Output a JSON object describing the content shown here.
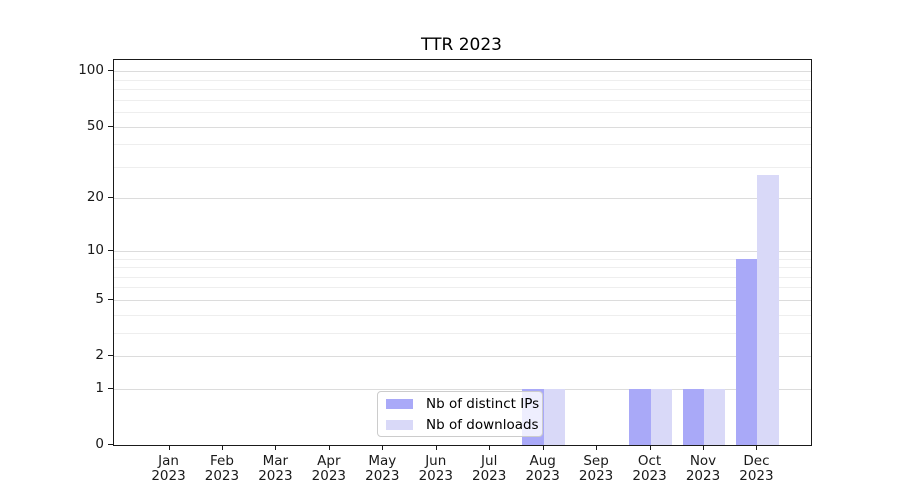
{
  "title": "TTR 2023",
  "chart_data": {
    "type": "bar",
    "categories": [
      "Jan",
      "Feb",
      "Mar",
      "Apr",
      "May",
      "Jun",
      "Jul",
      "Aug",
      "Sep",
      "Oct",
      "Nov",
      "Dec"
    ],
    "category_year": "2023",
    "series": [
      {
        "name": "Nb of distinct IPs",
        "color": "#a9a9f8",
        "values": [
          0,
          0,
          0,
          0,
          0,
          0,
          0,
          1,
          0,
          1,
          1,
          9
        ]
      },
      {
        "name": "Nb of downloads",
        "color": "#d9d9f8",
        "values": [
          0,
          0,
          0,
          0,
          0,
          0,
          0,
          1,
          0,
          1,
          1,
          27
        ]
      }
    ],
    "yscale": "log1p",
    "ylim": [
      0,
      115
    ],
    "yticks": [
      0,
      1,
      2,
      5,
      10,
      20,
      50,
      100
    ],
    "yticks_minor": [
      3,
      4,
      6,
      7,
      8,
      9,
      30,
      40,
      60,
      70,
      80,
      90
    ],
    "grid": true,
    "legend_position": "lower center",
    "colors": {
      "axis": "#1a1a1a",
      "grid_major": "#dcdcdc",
      "grid_minor": "#eeeeee",
      "legend_border": "#cccccc",
      "legend_background": "rgba(255,255,255,0.8)",
      "text": "#000000"
    }
  }
}
